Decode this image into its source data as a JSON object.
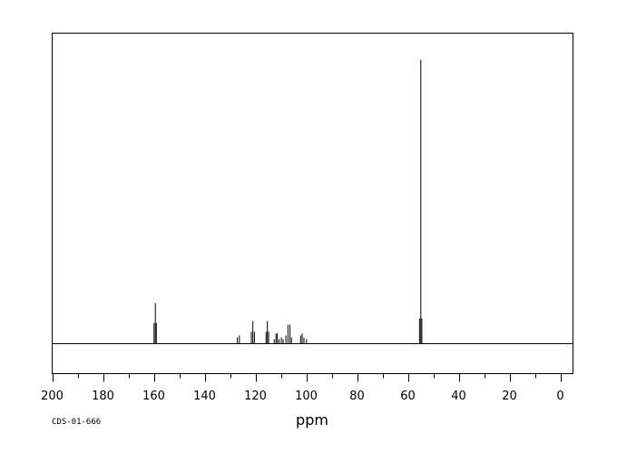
{
  "chart_data": {
    "type": "line",
    "subtype": "nmr-stick-spectrum",
    "title": "",
    "xlabel": "ppm",
    "ylabel": "",
    "xlim": [
      200,
      -5
    ],
    "x_reversed": true,
    "ylim": [
      0,
      1
    ],
    "x_ticks": [
      200,
      180,
      160,
      140,
      120,
      100,
      80,
      60,
      40,
      20,
      0
    ],
    "grid": false,
    "legend": "none",
    "sample_id": "CDS-01-666",
    "baseline_color": "#000000",
    "peak_color": "#000000",
    "peaks": [
      {
        "ppm": 159.9,
        "intensity": 0.073
      },
      {
        "ppm": 159.4,
        "intensity": 0.143
      },
      {
        "ppm": 159.0,
        "intensity": 0.073
      },
      {
        "ppm": 127.1,
        "intensity": 0.022
      },
      {
        "ppm": 126.3,
        "intensity": 0.029
      },
      {
        "ppm": 121.6,
        "intensity": 0.042
      },
      {
        "ppm": 121.0,
        "intensity": 0.08
      },
      {
        "ppm": 120.4,
        "intensity": 0.042
      },
      {
        "ppm": 115.8,
        "intensity": 0.042
      },
      {
        "ppm": 115.3,
        "intensity": 0.08
      },
      {
        "ppm": 114.8,
        "intensity": 0.042
      },
      {
        "ppm": 112.6,
        "intensity": 0.016
      },
      {
        "ppm": 111.9,
        "intensity": 0.036
      },
      {
        "ppm": 111.4,
        "intensity": 0.036
      },
      {
        "ppm": 110.7,
        "intensity": 0.016
      },
      {
        "ppm": 109.8,
        "intensity": 0.022
      },
      {
        "ppm": 109.1,
        "intensity": 0.016
      },
      {
        "ppm": 108.0,
        "intensity": 0.029
      },
      {
        "ppm": 107.2,
        "intensity": 0.067
      },
      {
        "ppm": 106.4,
        "intensity": 0.067
      },
      {
        "ppm": 105.8,
        "intensity": 0.022
      },
      {
        "ppm": 102.2,
        "intensity": 0.029
      },
      {
        "ppm": 101.6,
        "intensity": 0.036
      },
      {
        "ppm": 100.9,
        "intensity": 0.022
      },
      {
        "ppm": 99.9,
        "intensity": 0.016
      },
      {
        "ppm": 55.4,
        "intensity": 0.089
      },
      {
        "ppm": 54.9,
        "intensity": 1.0
      },
      {
        "ppm": 54.5,
        "intensity": 0.089
      }
    ]
  }
}
